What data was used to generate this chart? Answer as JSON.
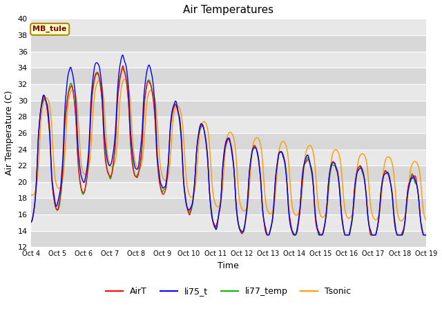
{
  "title": "Air Temperatures",
  "xlabel": "Time",
  "ylabel": "Air Temperature (C)",
  "ylim": [
    12,
    40
  ],
  "yticks": [
    12,
    14,
    16,
    18,
    20,
    22,
    24,
    26,
    28,
    30,
    32,
    34,
    36,
    38,
    40
  ],
  "xtick_labels": [
    "Oct 4",
    "Oct 5",
    "Oct 6",
    "Oct 7",
    "Oct 8",
    "Oct 9",
    "Oct 10",
    "Oct 11",
    "Oct 12",
    "Oct 13",
    "Oct 14",
    "Oct 15",
    "Oct 16",
    "Oct 17",
    "Oct 18",
    "Oct 19"
  ],
  "series_colors": [
    "#ff0000",
    "#0000ff",
    "#00bb00",
    "#ff9900"
  ],
  "series_names": [
    "AirT",
    "li75_t",
    "li77_temp",
    "Tsonic"
  ],
  "fig_bg_color": "#ffffff",
  "plot_bg_color": "#e8e8e8",
  "band_color_dark": "#d8d8d8",
  "band_color_light": "#e8e8e8",
  "grid_color": "#ffffff",
  "annotation_text": "MB_tule",
  "annotation_bg": "#ffffcc",
  "annotation_border": "#aa8800",
  "annotation_text_color": "#880000",
  "n_days": 15
}
